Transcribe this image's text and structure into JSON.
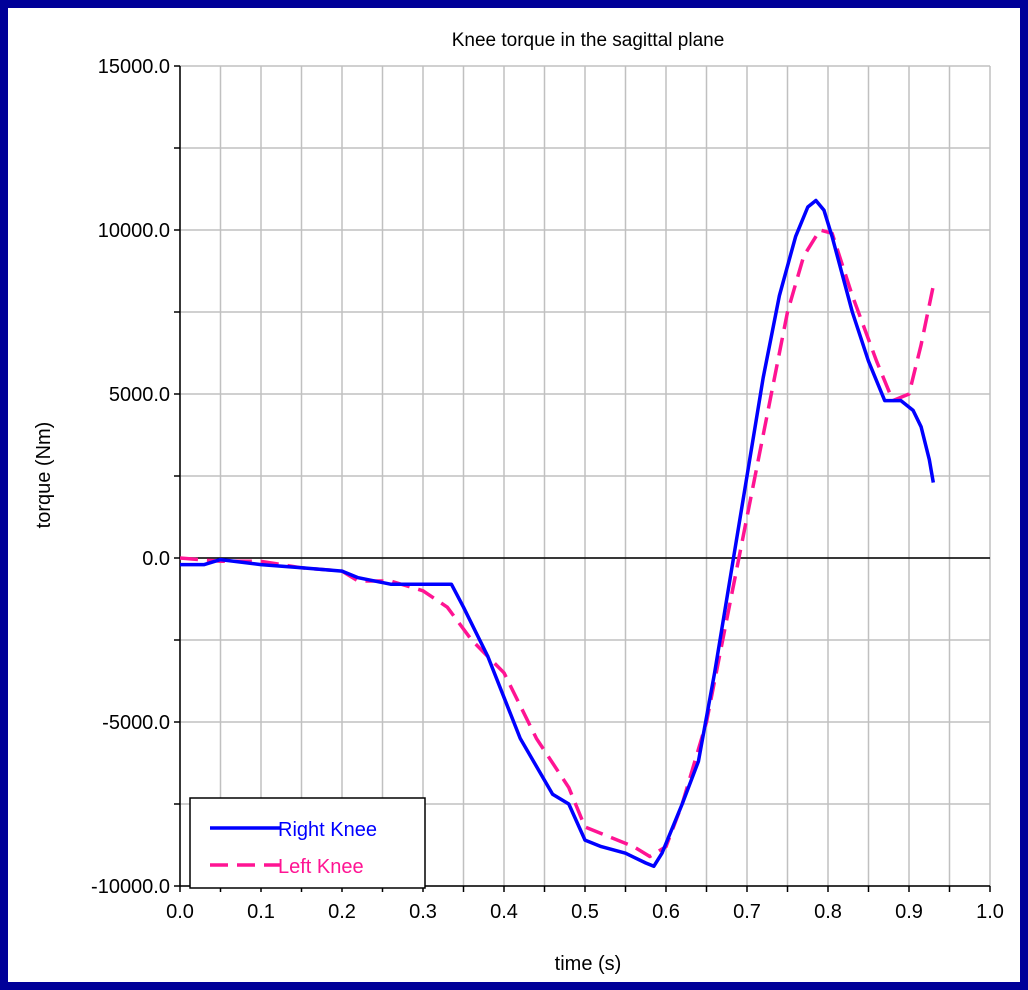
{
  "colors": {
    "frame": "#000099",
    "background": "#ffffff",
    "grid": "#c0c0c0",
    "axis": "#000000",
    "right_knee": "#0000ff",
    "left_knee": "#ff1493"
  },
  "chart_data": {
    "type": "line",
    "title": "Knee torque in the sagittal plane",
    "xlabel": "time (s)",
    "ylabel": "torque (Nm)",
    "xlim": [
      0.0,
      1.0
    ],
    "ylim": [
      -10000,
      15000
    ],
    "x_ticks": [
      "0.0",
      "0.1",
      "0.2",
      "0.3",
      "0.4",
      "0.5",
      "0.6",
      "0.7",
      "0.8",
      "0.9",
      "1.0"
    ],
    "y_ticks": [
      "15000.0",
      "10000.0",
      "5000.0",
      "0.0",
      "-5000.0",
      "-10000.0"
    ],
    "grid": true,
    "legend_position": "bottom-left",
    "series": [
      {
        "name": "Right Knee",
        "style": "solid",
        "x": [
          0.0,
          0.03,
          0.05,
          0.1,
          0.15,
          0.2,
          0.22,
          0.26,
          0.3,
          0.32,
          0.335,
          0.35,
          0.38,
          0.42,
          0.46,
          0.48,
          0.5,
          0.52,
          0.55,
          0.575,
          0.585,
          0.595,
          0.62,
          0.64,
          0.66,
          0.68,
          0.7,
          0.72,
          0.74,
          0.76,
          0.775,
          0.785,
          0.795,
          0.805,
          0.83,
          0.85,
          0.87,
          0.89,
          0.905,
          0.915,
          0.925,
          0.93
        ],
        "y": [
          -200,
          -200,
          -50,
          -200,
          -300,
          -400,
          -600,
          -800,
          -800,
          -800,
          -800,
          -1500,
          -3000,
          -5500,
          -7200,
          -7500,
          -8600,
          -8800,
          -9000,
          -9300,
          -9400,
          -9000,
          -7500,
          -6200,
          -3500,
          -500,
          2500,
          5500,
          8000,
          9800,
          10700,
          10900,
          10600,
          9800,
          7500,
          6000,
          4800,
          4800,
          4500,
          4000,
          3000,
          2300
        ]
      },
      {
        "name": "Left Knee",
        "style": "dashed",
        "x": [
          0.0,
          0.05,
          0.1,
          0.15,
          0.2,
          0.22,
          0.26,
          0.3,
          0.33,
          0.36,
          0.4,
          0.44,
          0.48,
          0.5,
          0.53,
          0.56,
          0.58,
          0.6,
          0.62,
          0.65,
          0.67,
          0.69,
          0.71,
          0.73,
          0.75,
          0.77,
          0.79,
          0.805,
          0.83,
          0.86,
          0.88,
          0.9,
          0.915,
          0.93
        ],
        "y": [
          0,
          -100,
          -100,
          -300,
          -400,
          -700,
          -700,
          -1000,
          -1500,
          -2500,
          -3500,
          -5500,
          -7000,
          -8200,
          -8500,
          -8800,
          -9100,
          -8800,
          -7500,
          -5000,
          -2500,
          0,
          2500,
          5000,
          7500,
          9200,
          10000,
          9900,
          8000,
          6000,
          4800,
          5000,
          6500,
          8300
        ]
      }
    ]
  }
}
